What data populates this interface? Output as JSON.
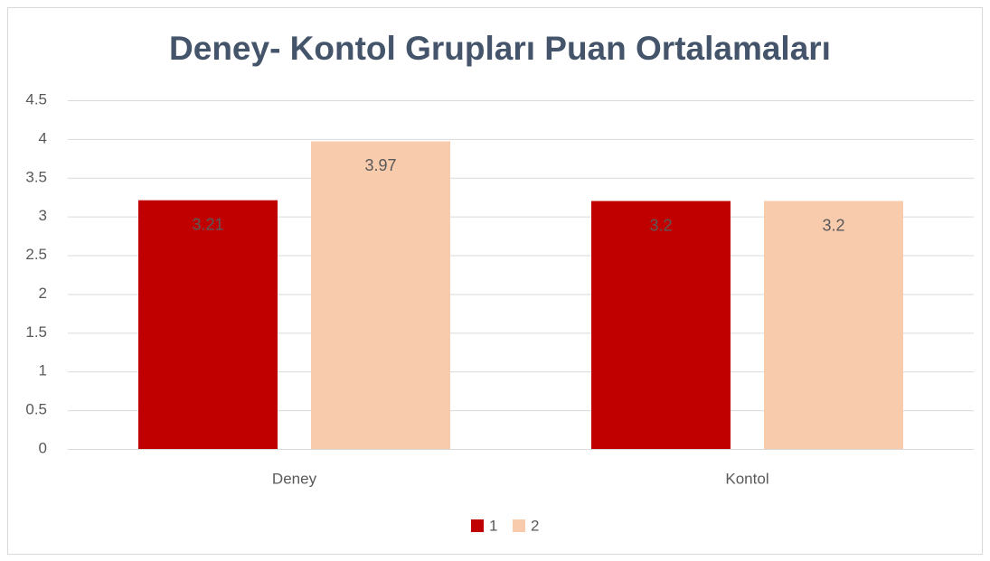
{
  "chart_data": {
    "type": "bar",
    "title": "Deney- Kontol Grupları Puan Ortalamaları",
    "categories": [
      "Deney",
      "Kontol"
    ],
    "series": [
      {
        "name": "1",
        "color": "#c00000",
        "values": [
          3.21,
          3.2
        ]
      },
      {
        "name": "2",
        "color": "#f8cbad",
        "values": [
          3.97,
          3.2
        ]
      }
    ],
    "ylim": [
      0,
      4.5
    ],
    "yticks": [
      0,
      0.5,
      1,
      1.5,
      2,
      2.5,
      3,
      3.5,
      4,
      4.5
    ],
    "grid": true,
    "legend": "bottom"
  }
}
